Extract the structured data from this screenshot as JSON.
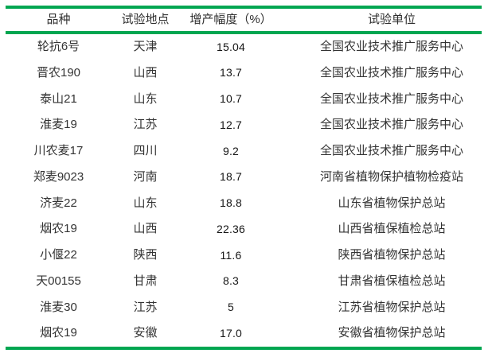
{
  "colors": {
    "rule_green": "#00a651",
    "text": "#333333"
  },
  "table": {
    "columns": [
      "品种",
      "试验地点",
      "增产幅度（%）",
      "试验单位"
    ],
    "rows": [
      [
        "轮抗6号",
        "天津",
        "15.04",
        "全国农业技术推广服务中心"
      ],
      [
        "晋农190",
        "山西",
        "13.7",
        "全国农业技术推广服务中心"
      ],
      [
        "泰山21",
        "山东",
        "10.7",
        "全国农业技术推广服务中心"
      ],
      [
        "淮麦19",
        "江苏",
        "12.7",
        "全国农业技术推广服务中心"
      ],
      [
        "川农麦17",
        "四川",
        "9.2",
        "全国农业技术推广服务中心"
      ],
      [
        "郑麦9023",
        "河南",
        "18.7",
        "河南省植物保护植物检疫站"
      ],
      [
        "济麦22",
        "山东",
        "18.8",
        "山东省植物保护总站"
      ],
      [
        "烟农19",
        "山西",
        "22.36",
        "山西省植保植检总站"
      ],
      [
        "小偃22",
        "陕西",
        "11.6",
        "陕西省植物保护总站"
      ],
      [
        "天00155",
        "甘肃",
        "8.3",
        "甘肃省植保植检总站"
      ],
      [
        "淮麦30",
        "江苏",
        "5",
        "江苏省植物保护总站"
      ],
      [
        "烟农19",
        "安徽",
        "17.0",
        "安徽省植物保护总站"
      ]
    ]
  }
}
